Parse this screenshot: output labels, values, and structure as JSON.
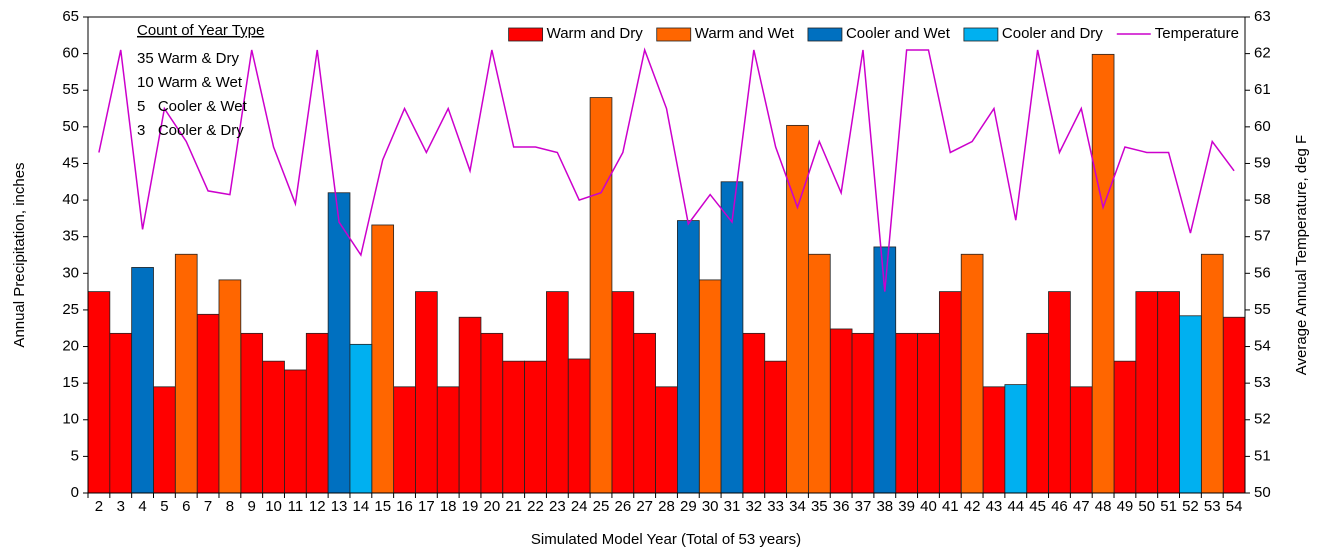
{
  "chart_data": {
    "type": "bar",
    "ylabel": "Annual Precipitation, inches",
    "y2label": "Average Annual Temperature, deg F",
    "xlabel": "Simulated Model Year (Total of 53 years)",
    "annotation_title": "Count of Year Type",
    "annotations": [
      "35 Warm & Dry",
      "10 Warm & Wet",
      "5   Cooler & Wet",
      "3   Cooler & Dry"
    ],
    "categories": [
      "2",
      "3",
      "4",
      "5",
      "6",
      "7",
      "8",
      "9",
      "10",
      "11",
      "12",
      "13",
      "14",
      "15",
      "16",
      "17",
      "18",
      "19",
      "20",
      "21",
      "22",
      "23",
      "24",
      "25",
      "26",
      "27",
      "28",
      "29",
      "30",
      "31",
      "32",
      "33",
      "34",
      "35",
      "36",
      "37",
      "38",
      "39",
      "40",
      "41",
      "42",
      "43",
      "44",
      "45",
      "46",
      "47",
      "48",
      "49",
      "50",
      "51",
      "52",
      "53",
      "54"
    ],
    "series": [
      {
        "name": "Warm and Dry",
        "color": "#ff0000",
        "type": "bar",
        "values": [
          27.5,
          21.8,
          null,
          14.5,
          null,
          24.4,
          null,
          21.8,
          18,
          16.8,
          21.8,
          null,
          null,
          null,
          14.5,
          27.5,
          14.5,
          24,
          21.8,
          18,
          18,
          27.5,
          18.3,
          null,
          27.5,
          21.8,
          14.5,
          null,
          null,
          null,
          21.8,
          18,
          null,
          null,
          22.4,
          21.8,
          null,
          21.8,
          21.8,
          27.5,
          null,
          14.5,
          null,
          21.8,
          27.5,
          14.5,
          null,
          18,
          27.5,
          27.5,
          null,
          null,
          24
        ]
      },
      {
        "name": "Warm and Wet",
        "color": "#ff6600",
        "type": "bar",
        "values": [
          null,
          null,
          null,
          null,
          32.6,
          null,
          29.1,
          null,
          null,
          null,
          null,
          null,
          null,
          36.6,
          null,
          null,
          null,
          null,
          null,
          null,
          null,
          null,
          null,
          54,
          null,
          null,
          null,
          null,
          29.1,
          null,
          null,
          null,
          50.2,
          32.6,
          null,
          null,
          null,
          null,
          null,
          null,
          32.6,
          null,
          null,
          null,
          null,
          null,
          59.9,
          null,
          null,
          null,
          null,
          32.6,
          null
        ]
      },
      {
        "name": "Cooler and Wet",
        "color": "#0070c0",
        "type": "bar",
        "values": [
          null,
          null,
          30.8,
          null,
          null,
          null,
          null,
          null,
          null,
          null,
          null,
          41,
          null,
          null,
          null,
          null,
          null,
          null,
          null,
          null,
          null,
          null,
          null,
          null,
          null,
          null,
          null,
          37.2,
          null,
          42.5,
          null,
          null,
          null,
          null,
          null,
          null,
          33.6,
          null,
          null,
          null,
          null,
          null,
          null,
          null,
          null,
          null,
          null,
          null,
          null,
          null,
          null,
          null,
          null
        ]
      },
      {
        "name": "Cooler and Dry",
        "color": "#00b0f0",
        "type": "bar",
        "values": [
          null,
          null,
          null,
          null,
          null,
          null,
          null,
          null,
          null,
          null,
          null,
          null,
          20.3,
          null,
          null,
          null,
          null,
          null,
          null,
          null,
          null,
          null,
          null,
          null,
          null,
          null,
          null,
          null,
          null,
          null,
          null,
          null,
          null,
          null,
          null,
          null,
          null,
          null,
          null,
          null,
          null,
          null,
          14.8,
          null,
          null,
          null,
          null,
          null,
          null,
          null,
          24.2,
          null,
          null
        ]
      },
      {
        "name": "Temperature",
        "color": "#cc00cc",
        "type": "line",
        "axis": "y2",
        "values": [
          59.3,
          62.1,
          57.2,
          60.5,
          59.6,
          58.25,
          58.15,
          62.1,
          59.45,
          57.9,
          62.1,
          57.4,
          56.5,
          59.1,
          60.5,
          59.3,
          60.5,
          58.8,
          62.1,
          59.45,
          59.45,
          59.3,
          58,
          58.2,
          59.3,
          62.1,
          60.5,
          57.35,
          58.15,
          57.4,
          62.1,
          59.45,
          57.8,
          59.6,
          58.2,
          62.1,
          55.5,
          62.1,
          62.1,
          59.3,
          59.6,
          60.5,
          57.45,
          62.1,
          59.3,
          60.5,
          57.8,
          59.45,
          59.3,
          59.3,
          57.1,
          59.6,
          58.8
        ]
      }
    ],
    "ylim": [
      0,
      65
    ],
    "yticks": [
      0,
      5,
      10,
      15,
      20,
      25,
      30,
      35,
      40,
      45,
      50,
      55,
      60,
      65
    ],
    "y2lim": [
      50,
      63
    ],
    "y2ticks": [
      50,
      51,
      52,
      53,
      54,
      55,
      56,
      57,
      58,
      59,
      60,
      61,
      62,
      63
    ],
    "grid": false,
    "legend": "top-right"
  }
}
